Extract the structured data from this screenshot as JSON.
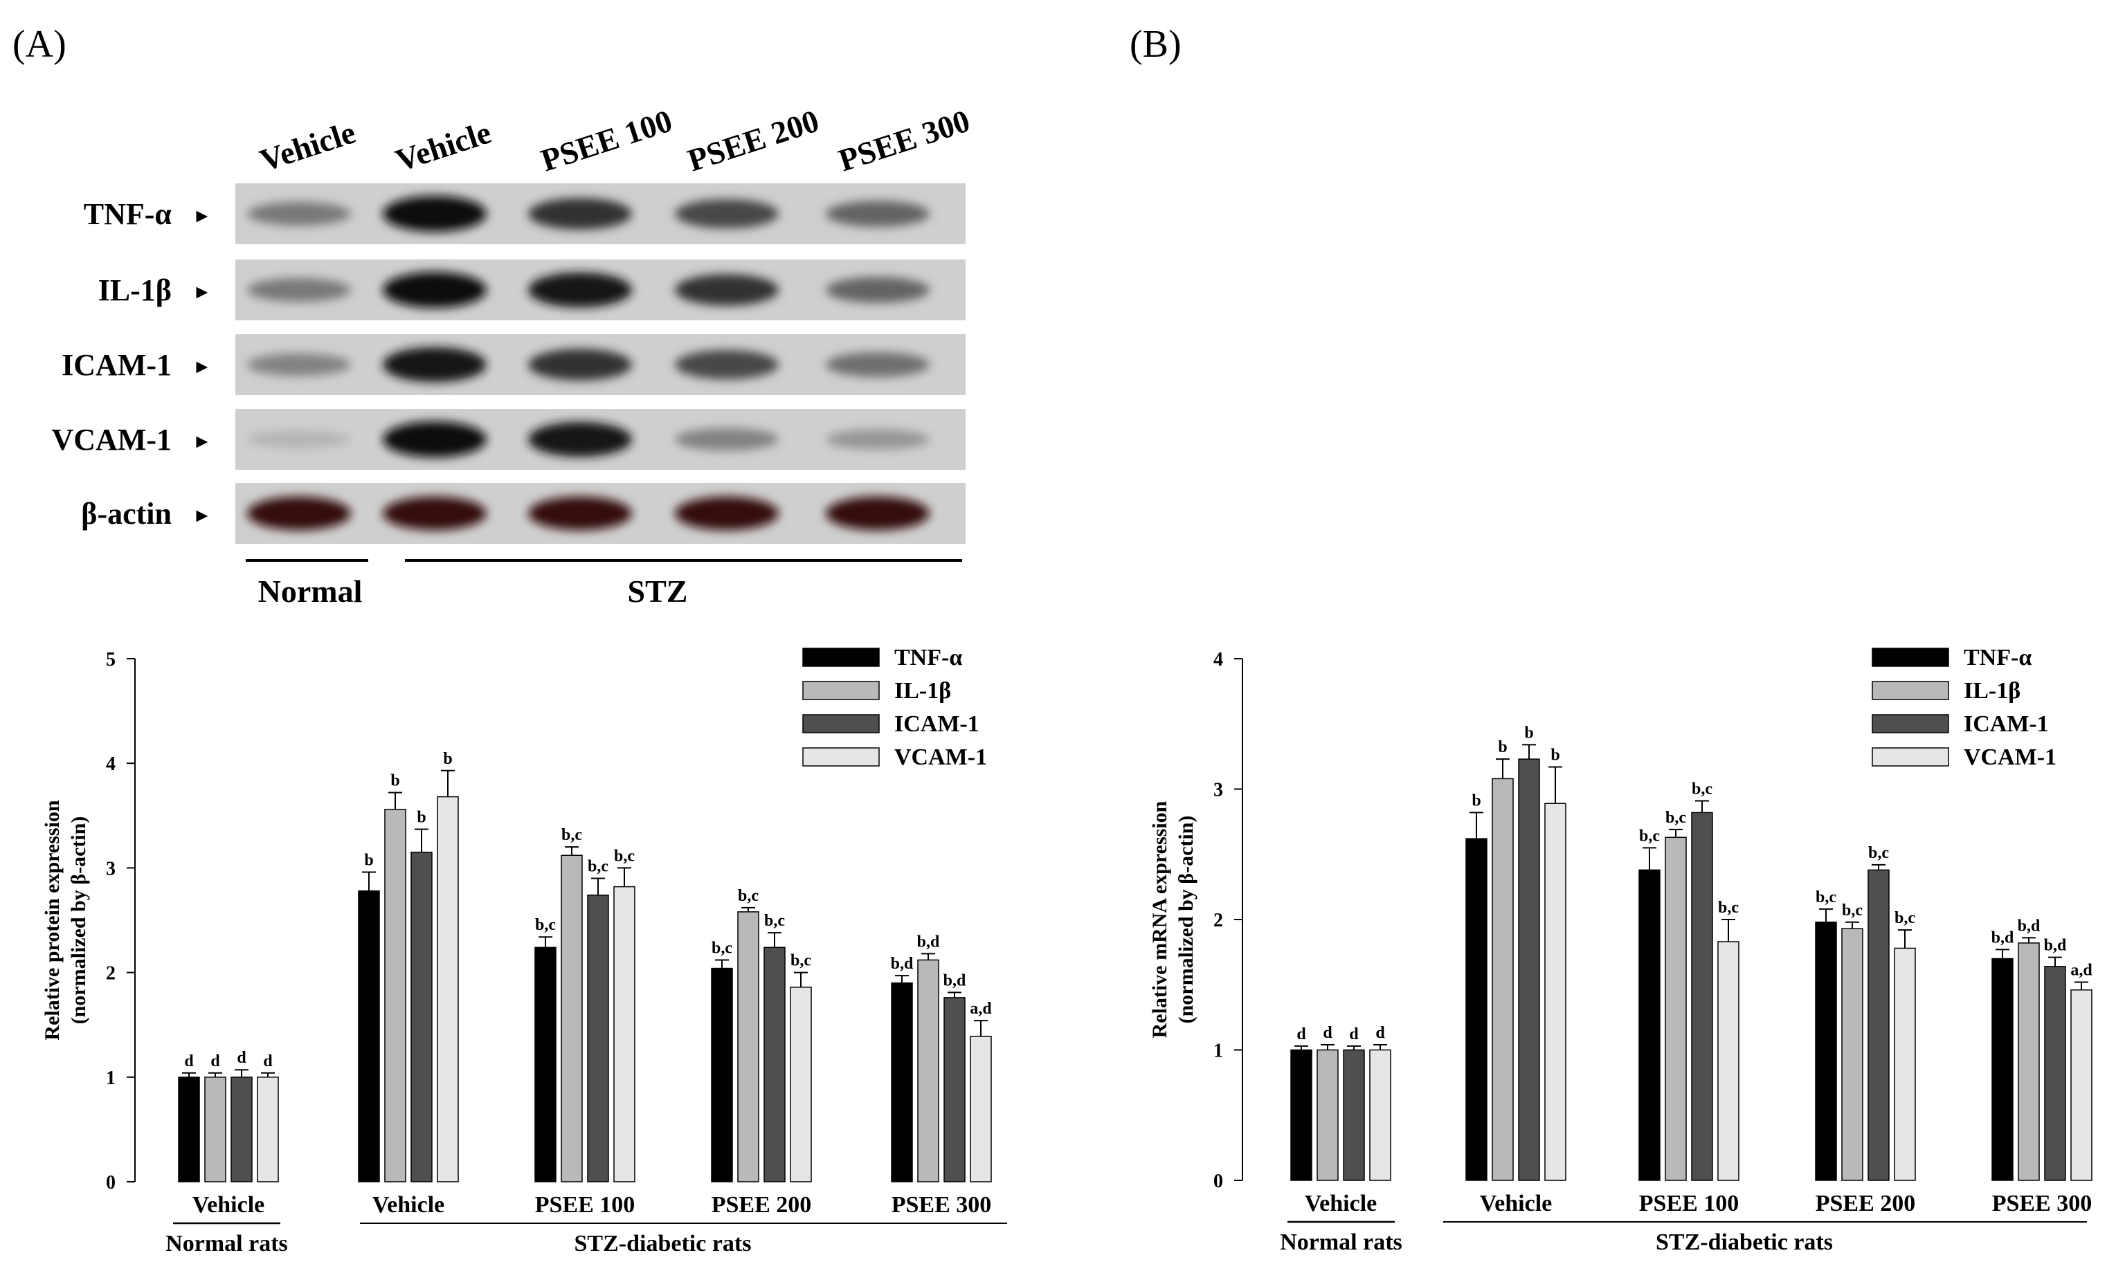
{
  "panels": {
    "a_label": "(A)",
    "b_label": "(B)"
  },
  "colors": {
    "TNF-α": "#000000",
    "IL-1β": "#b9b9b9",
    "ICAM-1": "#4f4f4f",
    "VCAM-1": "#e6e6e6",
    "blot_bg": "#cfcfcf"
  },
  "western_blot": {
    "lane_labels": [
      "Vehicle",
      "Vehicle",
      "PSEE 100",
      "PSEE 200",
      "PSEE 300"
    ],
    "row_labels": [
      "TNF-α",
      "IL-1β",
      "ICAM-1",
      "VCAM-1",
      "β-actin"
    ],
    "arrow": "►",
    "group_normal": "Normal",
    "group_stz": "STZ",
    "band_intensity": [
      [
        0.45,
        1.0,
        0.8,
        0.7,
        0.55
      ],
      [
        0.45,
        1.0,
        0.95,
        0.8,
        0.55
      ],
      [
        0.4,
        0.95,
        0.8,
        0.7,
        0.5
      ],
      [
        0.15,
        1.0,
        0.95,
        0.4,
        0.3
      ],
      [
        0.9,
        0.9,
        0.9,
        0.9,
        0.9
      ]
    ]
  },
  "chart_data": [
    {
      "type": "bar",
      "ylabel_line1": "Relative protein expression",
      "ylabel_line2": "(normalized by β-actin)",
      "ylim": [
        0,
        5
      ],
      "yticks": [
        0,
        1,
        2,
        3,
        4,
        5
      ],
      "categories": [
        "Vehicle",
        "Vehicle",
        "PSEE 100",
        "PSEE 200",
        "PSEE 300"
      ],
      "group_normal": "Normal rats",
      "group_stz": "STZ-diabetic rats",
      "legend_position": "top-right",
      "series": [
        {
          "name": "TNF-α",
          "values": [
            1.0,
            2.78,
            2.24,
            2.04,
            1.9
          ],
          "errors": [
            0.04,
            0.18,
            0.1,
            0.08,
            0.07
          ],
          "labels": [
            "d",
            "b",
            "b,c",
            "b,c",
            "b,d"
          ]
        },
        {
          "name": "IL-1β",
          "values": [
            1.0,
            3.56,
            3.12,
            2.58,
            2.12
          ],
          "errors": [
            0.04,
            0.16,
            0.08,
            0.04,
            0.06
          ],
          "labels": [
            "d",
            "b",
            "b,c",
            "b,c",
            "b,d"
          ]
        },
        {
          "name": "ICAM-1",
          "values": [
            1.0,
            3.15,
            2.74,
            2.24,
            1.76
          ],
          "errors": [
            0.07,
            0.22,
            0.16,
            0.14,
            0.05
          ],
          "labels": [
            "d",
            "b",
            "b,c",
            "b,c",
            "b,d"
          ]
        },
        {
          "name": "VCAM-1",
          "values": [
            1.0,
            3.68,
            2.82,
            1.86,
            1.39
          ],
          "errors": [
            0.04,
            0.25,
            0.18,
            0.14,
            0.15
          ],
          "labels": [
            "d",
            "b",
            "b,c",
            "b,c",
            "a,d"
          ]
        }
      ]
    },
    {
      "type": "bar",
      "ylabel_line1": "Relative mRNA expression",
      "ylabel_line2": "(normalized by β-actin)",
      "ylim": [
        0,
        4
      ],
      "yticks": [
        0,
        1,
        2,
        3,
        4
      ],
      "categories": [
        "Vehicle",
        "Vehicle",
        "PSEE 100",
        "PSEE 200",
        "PSEE 300"
      ],
      "group_normal": "Normal rats",
      "group_stz": "STZ-diabetic rats",
      "legend_position": "top-right",
      "series": [
        {
          "name": "TNF-α",
          "values": [
            1.0,
            2.62,
            2.38,
            1.98,
            1.7
          ],
          "errors": [
            0.03,
            0.2,
            0.17,
            0.1,
            0.07
          ],
          "labels": [
            "d",
            "b",
            "b,c",
            "b,c",
            "b,d"
          ]
        },
        {
          "name": "IL-1β",
          "values": [
            1.0,
            3.08,
            2.63,
            1.93,
            1.82
          ],
          "errors": [
            0.04,
            0.15,
            0.06,
            0.05,
            0.04
          ],
          "labels": [
            "d",
            "b",
            "b,c",
            "b,c",
            "b,d"
          ]
        },
        {
          "name": "ICAM-1",
          "values": [
            1.0,
            3.23,
            2.82,
            2.38,
            1.64
          ],
          "errors": [
            0.03,
            0.11,
            0.09,
            0.04,
            0.07
          ],
          "labels": [
            "d",
            "b",
            "b,c",
            "b,c",
            "b,d"
          ]
        },
        {
          "name": "VCAM-1",
          "values": [
            1.0,
            2.89,
            1.83,
            1.78,
            1.46
          ],
          "errors": [
            0.04,
            0.28,
            0.17,
            0.14,
            0.06
          ],
          "labels": [
            "d",
            "b",
            "b,c",
            "b,c",
            "a,d"
          ]
        }
      ]
    }
  ]
}
